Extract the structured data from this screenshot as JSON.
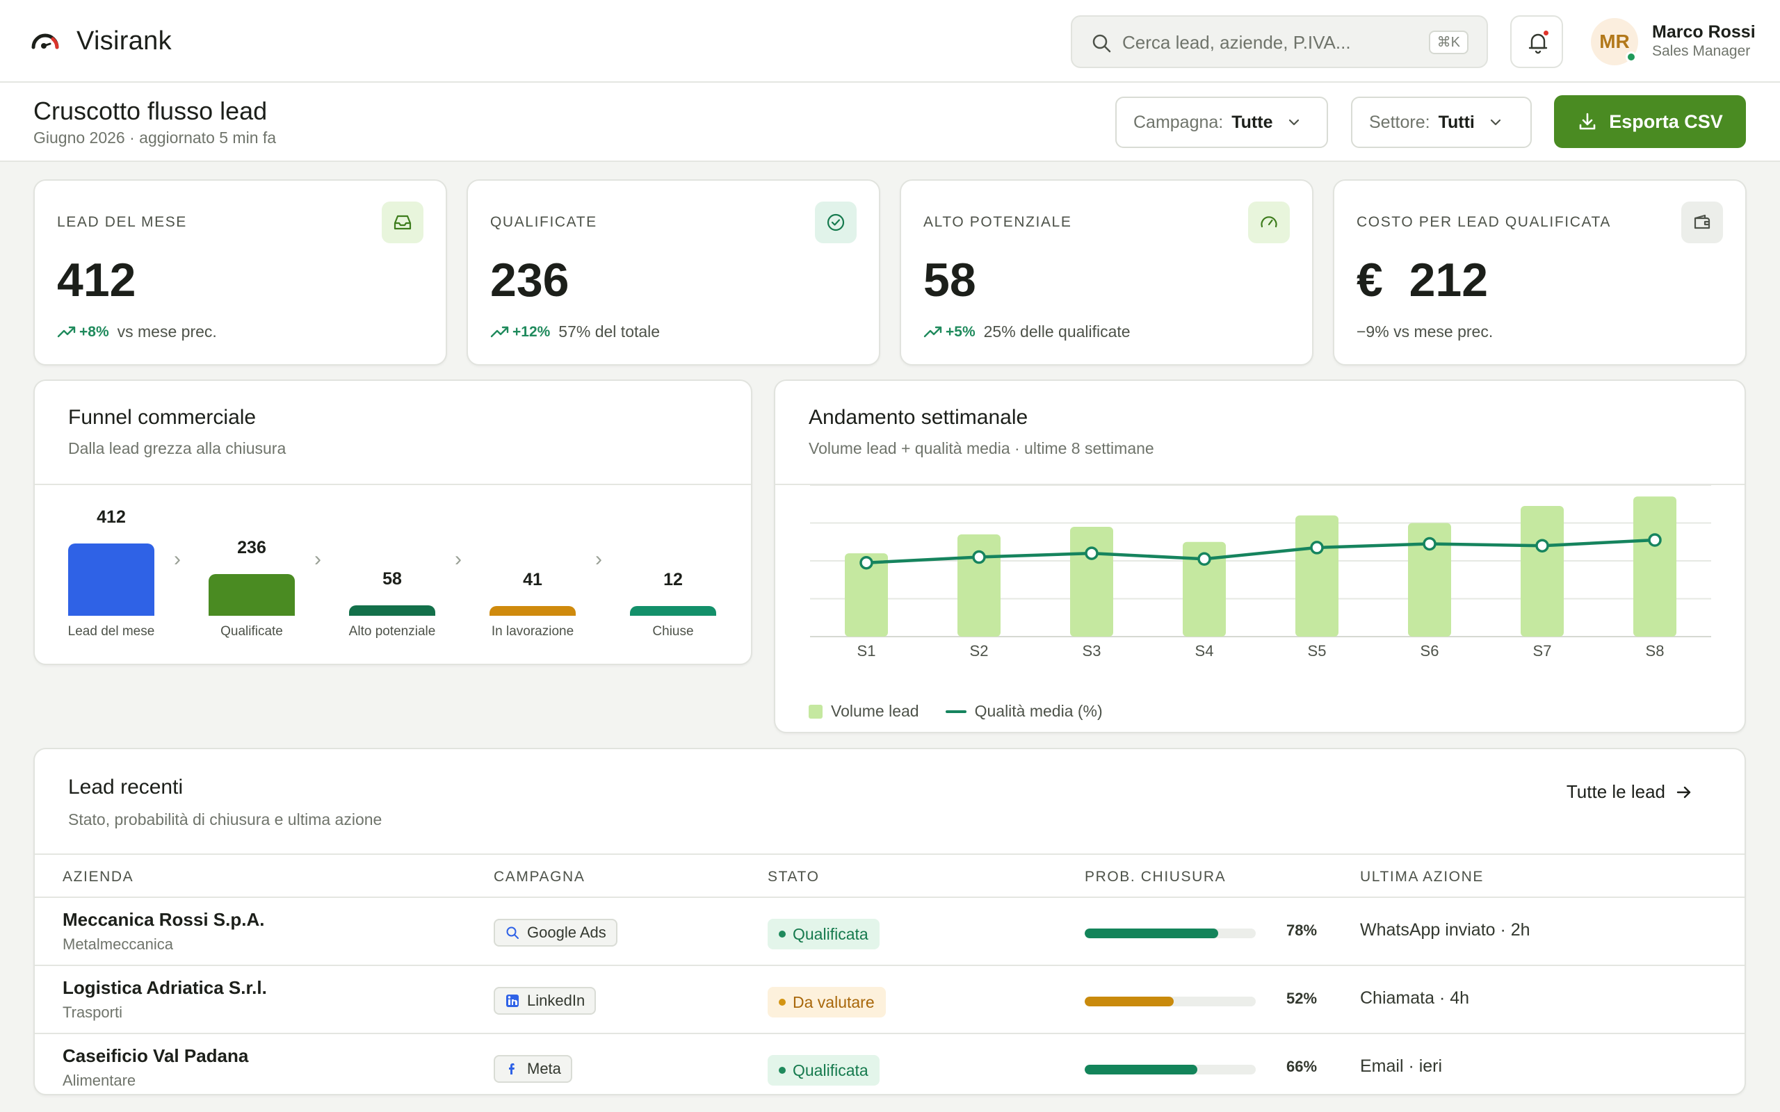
{
  "app": {
    "name": "Visirank"
  },
  "search": {
    "placeholder": "Cerca lead, aziende, P.IVA...",
    "shortcut": "⌘K"
  },
  "user": {
    "initials": "MR",
    "name": "Marco Rossi",
    "role": "Sales Manager"
  },
  "page": {
    "title": "Cruscotto flusso lead",
    "subtitle": "Giugno 2026 · aggiornato 5 min fa"
  },
  "filters": {
    "campagna": {
      "label": "Campagna:",
      "value": "Tutte"
    },
    "settore": {
      "label": "Settore:",
      "value": "Tutti"
    }
  },
  "export_label": "Esporta CSV",
  "kpis": [
    {
      "label": "LEAD DEL MESE",
      "value": "412",
      "delta": "+8%",
      "note": "vs mese prec.",
      "icon": "inbox-icon"
    },
    {
      "label": "QUALIFICATE",
      "value": "236",
      "delta": "+12%",
      "note": "57% del totale",
      "icon": "check-circle-icon"
    },
    {
      "label": "ALTO POTENZIALE",
      "value": "58",
      "delta": "+5%",
      "note": "25% delle qualificate",
      "icon": "gauge-icon"
    },
    {
      "label": "COSTO PER LEAD QUALIFICATA",
      "value": "€  212",
      "note": "−9% vs mese prec.",
      "icon": "wallet-icon"
    }
  ],
  "funnel": {
    "title": "Funnel commerciale",
    "subtitle": "Dalla lead grezza alla chiusura",
    "stages": [
      {
        "label": "Lead del mese",
        "value": 412,
        "color": "#2f62e6"
      },
      {
        "label": "Qualificate",
        "value": 236,
        "color": "#4a8b22"
      },
      {
        "label": "Alto potenziale",
        "value": 58,
        "color": "#13704a"
      },
      {
        "label": "In lavorazione",
        "value": 41,
        "color": "#cf8a0d"
      },
      {
        "label": "Chiuse",
        "value": 12,
        "color": "#13906a"
      }
    ]
  },
  "weekly": {
    "title": "Andamento settimanale",
    "subtitle": "Volume lead + qualità media · ultime 8 settimane",
    "legend_bar": "Volume lead",
    "legend_line": "Qualità media (%)"
  },
  "chart_data": {
    "type": "bar",
    "categories": [
      "S1",
      "S2",
      "S3",
      "S4",
      "S5",
      "S6",
      "S7",
      "S8"
    ],
    "series": [
      {
        "name": "Volume lead",
        "type": "bar",
        "values": [
          44,
          54,
          58,
          50,
          64,
          60,
          69,
          74
        ]
      },
      {
        "name": "Qualità media (%)",
        "type": "line",
        "values": [
          39,
          42,
          44,
          41,
          47,
          49,
          48,
          51
        ]
      }
    ],
    "ylim": [
      0,
      80
    ],
    "grid": true,
    "legend": "bottom-left"
  },
  "leads": {
    "title": "Lead recenti",
    "subtitle": "Stato, probabilità di chiusura e ultima azione",
    "all_link": "Tutte le lead",
    "columns": [
      "AZIENDA",
      "CAMPAGNA",
      "STATO",
      "PROB. CHIUSURA",
      "ULTIMA AZIONE"
    ],
    "rows": [
      {
        "company": "Meccanica Rossi S.p.A.",
        "sector": "Metalmeccanica",
        "campaign": "Google Ads",
        "campaign_icon": "search-icon",
        "state": "Qualificata",
        "state_kind": "q",
        "prob": 78,
        "prob_label": "78%",
        "prob_color": "#13845a",
        "action": "WhatsApp inviato · 2h"
      },
      {
        "company": "Logistica Adriatica S.r.l.",
        "sector": "Trasporti",
        "campaign": "LinkedIn",
        "campaign_icon": "linkedin-icon",
        "state": "Da valutare",
        "state_kind": "v",
        "prob": 52,
        "prob_label": "52%",
        "prob_color": "#c98a0c",
        "action": "Chiamata · 4h"
      },
      {
        "company": "Caseificio Val Padana",
        "sector": "Alimentare",
        "campaign": "Meta",
        "campaign_icon": "meta-icon",
        "state": "Qualificata",
        "state_kind": "q",
        "prob": 66,
        "prob_label": "66%",
        "prob_color": "#13845a",
        "action": "Email · ieri"
      }
    ]
  }
}
